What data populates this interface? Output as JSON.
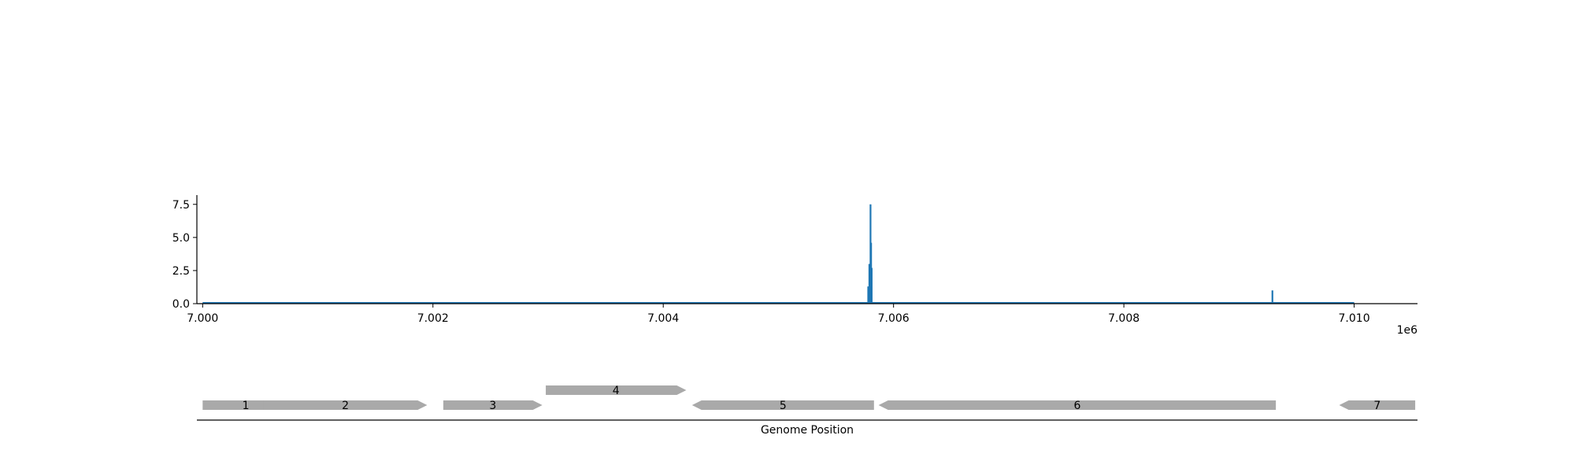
{
  "chart_data": [
    {
      "type": "line",
      "title": "",
      "xlabel": "",
      "ylabel": "",
      "x_offset_label": "1e6",
      "xlim": [
        6.99995,
        7.01055
      ],
      "ylim": [
        0,
        8.2
      ],
      "x_ticks": [
        {
          "value": 7.0,
          "label": "7.000"
        },
        {
          "value": 7.002,
          "label": "7.002"
        },
        {
          "value": 7.004,
          "label": "7.004"
        },
        {
          "value": 7.006,
          "label": "7.006"
        },
        {
          "value": 7.008,
          "label": "7.008"
        },
        {
          "value": 7.01,
          "label": "7.010"
        }
      ],
      "y_ticks": [
        {
          "value": 0.0,
          "label": "0.0"
        },
        {
          "value": 2.5,
          "label": "2.5"
        },
        {
          "value": 5.0,
          "label": "5.0"
        },
        {
          "value": 7.5,
          "label": "7.5"
        }
      ],
      "grid": false,
      "baseline_range": [
        7.0,
        7.01
      ],
      "series": [
        {
          "color": "#1f77b4",
          "peaks": [
            {
              "x": 7.00578,
              "y": 1.3
            },
            {
              "x": 7.00579,
              "y": 3.0
            },
            {
              "x": 7.0058,
              "y": 7.5
            },
            {
              "x": 7.005805,
              "y": 4.6
            },
            {
              "x": 7.00581,
              "y": 2.7
            },
            {
              "x": 7.00929,
              "y": 1.0
            }
          ]
        }
      ]
    },
    {
      "type": "gene-track",
      "xlabel": "Genome Position",
      "color": "#a9a9a9",
      "genes": [
        {
          "label": "1",
          "start": 7.0,
          "end": 7.00075,
          "strand": "+",
          "row": 0
        },
        {
          "label": "2",
          "start": 7.00053,
          "end": 7.00195,
          "strand": "+",
          "row": 0
        },
        {
          "label": "3",
          "start": 7.00209,
          "end": 7.00295,
          "strand": "+",
          "row": 0
        },
        {
          "label": "4",
          "start": 7.00298,
          "end": 7.0042,
          "strand": "+",
          "row": 1
        },
        {
          "label": "5",
          "start": 7.00425,
          "end": 7.00583,
          "strand": "-",
          "row": 0
        },
        {
          "label": "6",
          "start": 7.00587,
          "end": 7.00932,
          "strand": "-",
          "row": 0
        },
        {
          "label": "7",
          "start": 7.00987,
          "end": 7.01053,
          "strand": "-",
          "row": 0
        }
      ]
    }
  ]
}
